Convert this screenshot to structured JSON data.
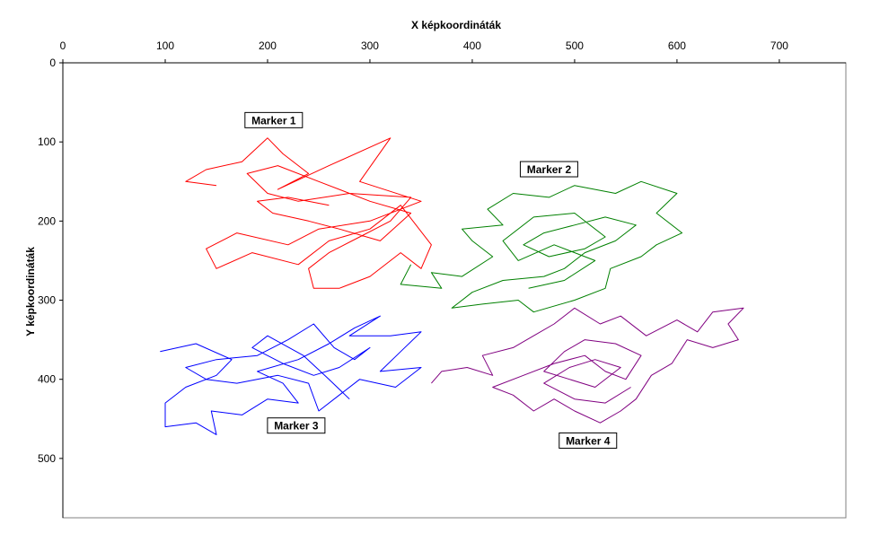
{
  "chart_data": {
    "type": "line",
    "title": "",
    "xlabel": "X képkoordináták",
    "ylabel": "Y képkoordináták",
    "xlim": [
      0,
      765
    ],
    "ylim": [
      0,
      575
    ],
    "y_inverted": true,
    "x_axis_position": "top",
    "xticks": [
      "0",
      "100",
      "200",
      "300",
      "400",
      "500",
      "600",
      "700"
    ],
    "yticks": [
      "0",
      "100",
      "200",
      "300",
      "400",
      "500"
    ],
    "grid": false,
    "legend": "none",
    "series": [
      {
        "name": "Marker 1",
        "color": "#ff0000",
        "label_pos": [
          206,
          73
        ],
        "points": [
          [
            150,
            155
          ],
          [
            120,
            150
          ],
          [
            140,
            135
          ],
          [
            175,
            125
          ],
          [
            200,
            95
          ],
          [
            215,
            115
          ],
          [
            240,
            140
          ],
          [
            210,
            160
          ],
          [
            260,
            130
          ],
          [
            320,
            95
          ],
          [
            290,
            150
          ],
          [
            350,
            175
          ],
          [
            300,
            200
          ],
          [
            250,
            210
          ],
          [
            220,
            230
          ],
          [
            170,
            215
          ],
          [
            140,
            235
          ],
          [
            150,
            260
          ],
          [
            185,
            240
          ],
          [
            230,
            255
          ],
          [
            260,
            225
          ],
          [
            300,
            210
          ],
          [
            330,
            180
          ],
          [
            360,
            230
          ],
          [
            350,
            260
          ],
          [
            330,
            240
          ],
          [
            300,
            270
          ],
          [
            270,
            285
          ],
          [
            245,
            285
          ],
          [
            240,
            260
          ],
          [
            260,
            240
          ],
          [
            290,
            220
          ],
          [
            320,
            200
          ],
          [
            340,
            170
          ],
          [
            280,
            165
          ],
          [
            230,
            175
          ],
          [
            200,
            165
          ],
          [
            180,
            140
          ],
          [
            210,
            130
          ],
          [
            250,
            150
          ],
          [
            300,
            175
          ],
          [
            340,
            190
          ],
          [
            310,
            225
          ],
          [
            270,
            210
          ],
          [
            240,
            200
          ],
          [
            205,
            190
          ],
          [
            190,
            175
          ],
          [
            220,
            170
          ],
          [
            260,
            180
          ]
        ]
      },
      {
        "name": "Marker 2",
        "color": "#008000",
        "label_pos": [
          475,
          135
        ],
        "points": [
          [
            340,
            255
          ],
          [
            330,
            280
          ],
          [
            370,
            285
          ],
          [
            360,
            265
          ],
          [
            390,
            270
          ],
          [
            420,
            245
          ],
          [
            400,
            225
          ],
          [
            390,
            210
          ],
          [
            430,
            205
          ],
          [
            415,
            185
          ],
          [
            440,
            165
          ],
          [
            475,
            170
          ],
          [
            500,
            155
          ],
          [
            540,
            165
          ],
          [
            565,
            150
          ],
          [
            600,
            165
          ],
          [
            580,
            190
          ],
          [
            605,
            215
          ],
          [
            580,
            230
          ],
          [
            565,
            245
          ],
          [
            535,
            260
          ],
          [
            530,
            285
          ],
          [
            500,
            300
          ],
          [
            460,
            315
          ],
          [
            445,
            300
          ],
          [
            410,
            305
          ],
          [
            380,
            310
          ],
          [
            400,
            290
          ],
          [
            430,
            275
          ],
          [
            470,
            270
          ],
          [
            490,
            260
          ],
          [
            510,
            240
          ],
          [
            540,
            225
          ],
          [
            560,
            205
          ],
          [
            530,
            195
          ],
          [
            500,
            205
          ],
          [
            470,
            215
          ],
          [
            450,
            230
          ],
          [
            475,
            245
          ],
          [
            510,
            235
          ],
          [
            530,
            220
          ],
          [
            500,
            190
          ],
          [
            460,
            195
          ],
          [
            430,
            225
          ],
          [
            445,
            250
          ],
          [
            480,
            230
          ],
          [
            520,
            250
          ],
          [
            490,
            275
          ],
          [
            455,
            285
          ]
        ]
      },
      {
        "name": "Marker 3",
        "color": "#0000ff",
        "label_pos": [
          228,
          459
        ],
        "points": [
          [
            95,
            365
          ],
          [
            130,
            355
          ],
          [
            165,
            375
          ],
          [
            150,
            395
          ],
          [
            120,
            410
          ],
          [
            100,
            430
          ],
          [
            100,
            460
          ],
          [
            130,
            455
          ],
          [
            150,
            470
          ],
          [
            145,
            440
          ],
          [
            175,
            445
          ],
          [
            200,
            425
          ],
          [
            230,
            430
          ],
          [
            215,
            405
          ],
          [
            190,
            390
          ],
          [
            230,
            375
          ],
          [
            260,
            355
          ],
          [
            285,
            335
          ],
          [
            310,
            320
          ],
          [
            280,
            345
          ],
          [
            320,
            345
          ],
          [
            350,
            340
          ],
          [
            330,
            365
          ],
          [
            310,
            390
          ],
          [
            350,
            385
          ],
          [
            325,
            410
          ],
          [
            290,
            400
          ],
          [
            270,
            420
          ],
          [
            250,
            440
          ],
          [
            240,
            405
          ],
          [
            210,
            395
          ],
          [
            170,
            405
          ],
          [
            140,
            400
          ],
          [
            120,
            385
          ],
          [
            150,
            375
          ],
          [
            190,
            370
          ],
          [
            220,
            350
          ],
          [
            245,
            330
          ],
          [
            265,
            360
          ],
          [
            285,
            375
          ],
          [
            300,
            360
          ],
          [
            270,
            385
          ],
          [
            245,
            395
          ],
          [
            215,
            380
          ],
          [
            185,
            360
          ],
          [
            200,
            345
          ],
          [
            235,
            370
          ],
          [
            260,
            400
          ],
          [
            280,
            425
          ]
        ]
      },
      {
        "name": "Marker 4",
        "color": "#800080",
        "label_pos": [
          513,
          478
        ],
        "points": [
          [
            360,
            405
          ],
          [
            370,
            390
          ],
          [
            395,
            385
          ],
          [
            420,
            395
          ],
          [
            410,
            370
          ],
          [
            440,
            360
          ],
          [
            460,
            345
          ],
          [
            480,
            330
          ],
          [
            500,
            310
          ],
          [
            525,
            330
          ],
          [
            545,
            320
          ],
          [
            570,
            345
          ],
          [
            600,
            325
          ],
          [
            620,
            340
          ],
          [
            635,
            315
          ],
          [
            665,
            310
          ],
          [
            650,
            330
          ],
          [
            660,
            350
          ],
          [
            635,
            360
          ],
          [
            610,
            350
          ],
          [
            595,
            380
          ],
          [
            575,
            395
          ],
          [
            560,
            425
          ],
          [
            545,
            440
          ],
          [
            525,
            455
          ],
          [
            500,
            440
          ],
          [
            480,
            425
          ],
          [
            460,
            440
          ],
          [
            440,
            420
          ],
          [
            420,
            410
          ],
          [
            450,
            395
          ],
          [
            480,
            380
          ],
          [
            510,
            370
          ],
          [
            530,
            390
          ],
          [
            550,
            400
          ],
          [
            565,
            370
          ],
          [
            540,
            355
          ],
          [
            510,
            350
          ],
          [
            490,
            365
          ],
          [
            470,
            390
          ],
          [
            495,
            400
          ],
          [
            520,
            410
          ],
          [
            545,
            385
          ],
          [
            520,
            375
          ],
          [
            495,
            385
          ],
          [
            470,
            405
          ],
          [
            500,
            425
          ],
          [
            530,
            430
          ],
          [
            555,
            410
          ]
        ]
      }
    ]
  }
}
